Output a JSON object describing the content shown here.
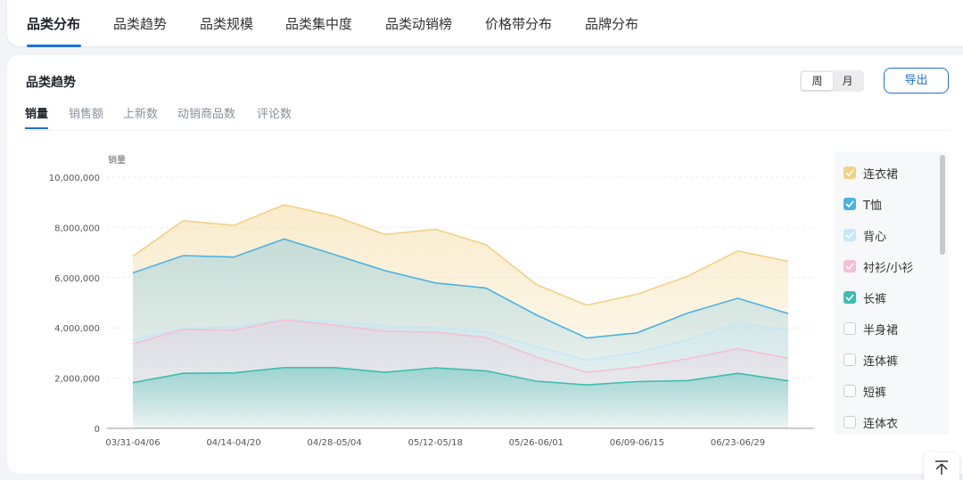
{
  "top_tabs": [
    {
      "label": "品类分布",
      "active": true
    },
    {
      "label": "品类趋势",
      "active": false
    },
    {
      "label": "品类规模",
      "active": false
    },
    {
      "label": "品类集中度",
      "active": false
    },
    {
      "label": "品类动销榜",
      "active": false
    },
    {
      "label": "价格带分布",
      "active": false
    },
    {
      "label": "品牌分布",
      "active": false
    }
  ],
  "card": {
    "title": "品类趋势",
    "period_toggle": {
      "week": "周",
      "month": "月",
      "selected": "周"
    },
    "export_label": "导出",
    "metric_tabs": [
      {
        "label": "销量",
        "active": true
      },
      {
        "label": "销售额",
        "active": false
      },
      {
        "label": "上新数",
        "active": false
      },
      {
        "label": "动销商品数",
        "active": false
      },
      {
        "label": "评论数",
        "active": false
      }
    ]
  },
  "legend": [
    {
      "label": "连衣裙",
      "checked": true,
      "color": "#f2d184"
    },
    {
      "label": "T恤",
      "checked": true,
      "color": "#4ab3e2"
    },
    {
      "label": "背心",
      "checked": true,
      "color": "#c5e8f6"
    },
    {
      "label": "衬衫/小衫",
      "checked": true,
      "color": "#f6bfd2"
    },
    {
      "label": "长裤",
      "checked": true,
      "color": "#3dbdb0"
    },
    {
      "label": "半身裙",
      "checked": false,
      "color": "#c9cdd4"
    },
    {
      "label": "连体裤",
      "checked": false,
      "color": "#c9cdd4"
    },
    {
      "label": "短裤",
      "checked": false,
      "color": "#c9cdd4"
    },
    {
      "label": "连体衣",
      "checked": false,
      "color": "#c9cdd4"
    }
  ],
  "chart_data": {
    "type": "area",
    "ylabel": "销量",
    "ylim": [
      0,
      10000000
    ],
    "yticks": [
      0,
      2000000,
      4000000,
      6000000,
      8000000,
      10000000
    ],
    "ytick_labels": [
      "0",
      "2,000,000",
      "4,000,000",
      "6,000,000",
      "8,000,000",
      "10,000,000"
    ],
    "x": [
      "03/31-04/06",
      "04/07-04/13",
      "04/14-04/20",
      "04/21-04/27",
      "04/28-05/04",
      "05/05-05/11",
      "05/12-05/18",
      "05/19-05/25",
      "05/26-06/01",
      "06/02-06/08",
      "06/09-06/15",
      "06/16-06/22",
      "06/23-06/29",
      "06/30-07/06"
    ],
    "x_tick_labels_shown": [
      "03/31-04/06",
      "04/14-04/20",
      "04/28-05/04",
      "05/12-05/18",
      "05/26-06/01",
      "06/09-06/15",
      "06/23-06/29"
    ],
    "series": [
      {
        "name": "连衣裙",
        "color": "#f2d184",
        "values": [
          6850000,
          8270000,
          8080000,
          8900000,
          8450000,
          7720000,
          7930000,
          7320000,
          5730000,
          4900000,
          5340000,
          6050000,
          7060000,
          6650000
        ]
      },
      {
        "name": "T恤",
        "color": "#4ab3e2",
        "values": [
          6190000,
          6880000,
          6820000,
          7540000,
          6920000,
          6280000,
          5790000,
          5590000,
          4520000,
          3600000,
          3800000,
          4590000,
          5180000,
          4570000
        ]
      },
      {
        "name": "背心",
        "color": "#c5e8f6",
        "values": [
          3520000,
          3980000,
          4040000,
          4350000,
          4250000,
          4090000,
          4000000,
          3850000,
          3260000,
          2720000,
          3020000,
          3530000,
          4200000,
          3900000
        ]
      },
      {
        "name": "衬衫/小衫",
        "color": "#f6bfd2",
        "values": [
          3360000,
          3940000,
          3910000,
          4320000,
          4110000,
          3870000,
          3830000,
          3620000,
          2840000,
          2230000,
          2440000,
          2770000,
          3170000,
          2790000
        ]
      },
      {
        "name": "长裤",
        "color": "#3dbdb0",
        "values": [
          1820000,
          2190000,
          2210000,
          2420000,
          2420000,
          2230000,
          2410000,
          2290000,
          1880000,
          1730000,
          1860000,
          1900000,
          2190000,
          1890000
        ]
      }
    ]
  }
}
